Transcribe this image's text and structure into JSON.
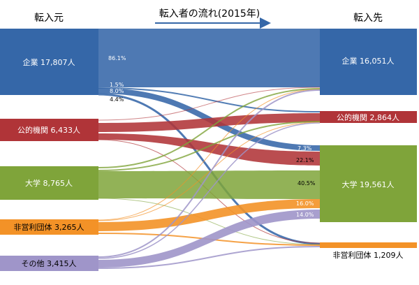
{
  "header": {
    "source_label": "転入元",
    "title": "転入者の流れ(2015年)",
    "target_label": "転入先"
  },
  "sources": [
    {
      "id": "company",
      "text": "企業 17,807人",
      "color": "#3567a8",
      "text_color": "#ffffff"
    },
    {
      "id": "public",
      "text": "公的機関 6,433人",
      "color": "#b03438",
      "text_color": "#ffffff"
    },
    {
      "id": "university",
      "text": "大学 8,765人",
      "color": "#7fa43a",
      "text_color": "#ffffff"
    },
    {
      "id": "nonprofit",
      "text": "非営利団体 3,265人",
      "color": "#f39227",
      "text_color": "#000000"
    },
    {
      "id": "other",
      "text": "その他 3,415人",
      "color": "#9f95c9",
      "text_color": "#000000"
    }
  ],
  "targets": [
    {
      "id": "company",
      "text": "企業 16,051人",
      "color": "#3567a8",
      "text_color": "#ffffff"
    },
    {
      "id": "public",
      "text": "公的機関 2,864人",
      "color": "#b03438",
      "text_color": "#ffffff"
    },
    {
      "id": "university",
      "text": "大学 19,561人",
      "color": "#7fa43a",
      "text_color": "#ffffff"
    },
    {
      "id": "nonprofit",
      "text": "非営利団体 1,209人",
      "color": "#f39227",
      "text_color": "#000000"
    }
  ],
  "flow_labels": [
    {
      "text": "86.1%"
    },
    {
      "text": "1.5%"
    },
    {
      "text": "8.0%"
    },
    {
      "text": "4.4%"
    },
    {
      "text": "7.3%"
    },
    {
      "text": "22.1%"
    },
    {
      "text": "40.5%"
    },
    {
      "text": "16.0%"
    },
    {
      "text": "14.0%"
    }
  ]
}
